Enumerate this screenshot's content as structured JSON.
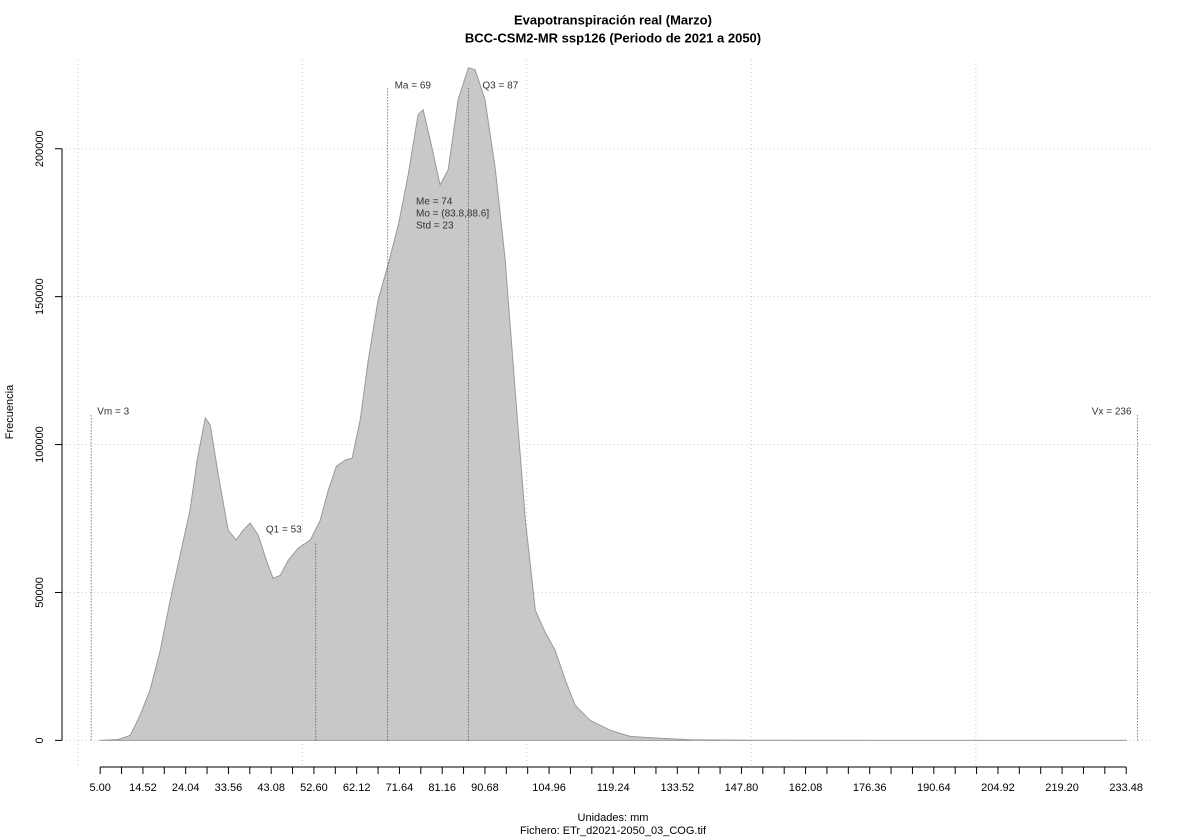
{
  "chart_data": {
    "type": "area",
    "title": "Evapotranspiración real (Marzo)",
    "subtitle": "BCC-CSM2-MR ssp126 (Periodo de 2021 a 2050)",
    "x_label": "Unidades: mm",
    "y_label": "Frecuencia",
    "caption": "Fichero: ETr_d2021-2050_03_COG.tif",
    "x": [
      5,
      9,
      11.7,
      13.9,
      16.1,
      18.4,
      20.6,
      22.8,
      25.0,
      26.6,
      28.4,
      29.5,
      31.3,
      33.5,
      35.3,
      36.8,
      38.4,
      40.2,
      42.0,
      43.5,
      45.1,
      46.9,
      49.1,
      51.8,
      54.0,
      55.8,
      57.6,
      59.6,
      61.1,
      62.9,
      64.7,
      66.9,
      69.1,
      71.4,
      73.6,
      75.8,
      76.9,
      78.5,
      80.7,
      82.5,
      84.7,
      87.0,
      88.5,
      90.7,
      93.0,
      95.2,
      97.4,
      99.7,
      101.9,
      104.1,
      106.3,
      108.6,
      110.8,
      114.1,
      118.6,
      123.0,
      129.7,
      136.4,
      149.8,
      183,
      233.5
    ],
    "values": [
      0,
      300,
      1700,
      8500,
      17000,
      30500,
      47400,
      62600,
      77800,
      94800,
      109000,
      106600,
      89700,
      71000,
      67700,
      71000,
      73400,
      69400,
      60900,
      54800,
      55800,
      60900,
      65000,
      67700,
      74400,
      84600,
      92700,
      94800,
      95400,
      108300,
      128600,
      148900,
      160700,
      174300,
      191200,
      211500,
      213200,
      203000,
      187800,
      192900,
      216600,
      227400,
      226700,
      216600,
      192900,
      162400,
      118400,
      74400,
      44000,
      36500,
      30500,
      20300,
      11800,
      6800,
      3400,
      1350,
      700,
      200,
      50,
      0,
      0
    ],
    "color": "#c8c8c8",
    "xlim": [
      -3.5,
      239
    ],
    "ylim": [
      -9000,
      230000
    ],
    "xticks": [
      {
        "value": 5,
        "label": "5.00"
      },
      {
        "value": 14.52,
        "label": "14.52"
      },
      {
        "value": 24.04,
        "label": "24.04"
      },
      {
        "value": 33.56,
        "label": "33.56"
      },
      {
        "value": 43.08,
        "label": "43.08"
      },
      {
        "value": 52.6,
        "label": "52.60"
      },
      {
        "value": 62.12,
        "label": "62.12"
      },
      {
        "value": 71.64,
        "label": "71.64"
      },
      {
        "value": 81.16,
        "label": "81.16"
      },
      {
        "value": 90.68,
        "label": "90.68"
      },
      {
        "value": 104.96,
        "label": "104.96"
      },
      {
        "value": 119.24,
        "label": "119.24"
      },
      {
        "value": 133.52,
        "label": "133.52"
      },
      {
        "value": 147.8,
        "label": "147.80"
      },
      {
        "value": 162.08,
        "label": "162.08"
      },
      {
        "value": 176.36,
        "label": "176.36"
      },
      {
        "value": 190.64,
        "label": "190.64"
      },
      {
        "value": 204.92,
        "label": "204.92"
      },
      {
        "value": 219.2,
        "label": "219.20"
      },
      {
        "value": 233.48,
        "label": "233.48"
      }
    ],
    "x_minor_ticks": [
      9.76,
      19.28,
      28.8,
      38.32,
      47.84,
      57.36,
      66.88,
      76.4,
      85.92,
      95.44,
      100.2,
      109.72,
      114.48,
      124,
      128.76,
      138.28,
      143.04,
      152.56,
      157.32,
      166.84,
      171.6,
      181.12,
      185.88,
      195.4,
      200.16,
      209.68,
      214.44,
      223.96,
      228.72
    ],
    "x_grid": [
      0,
      50,
      100,
      150,
      200
    ],
    "yticks": [
      0,
      50000,
      100000,
      150000,
      200000
    ],
    "grid": true,
    "markers": [
      {
        "label": "Vm = 3",
        "value": 3
      },
      {
        "label": "Q1 = 53",
        "value": 53
      },
      {
        "label": "Ma = 69",
        "value": 69
      },
      {
        "label": "Q3 = 87",
        "value": 87
      },
      {
        "label": "Vx = 236",
        "value": 236
      }
    ],
    "stats": [
      "Me = 74",
      "Mo = (83.8,88.6]",
      "Std = 23"
    ]
  }
}
